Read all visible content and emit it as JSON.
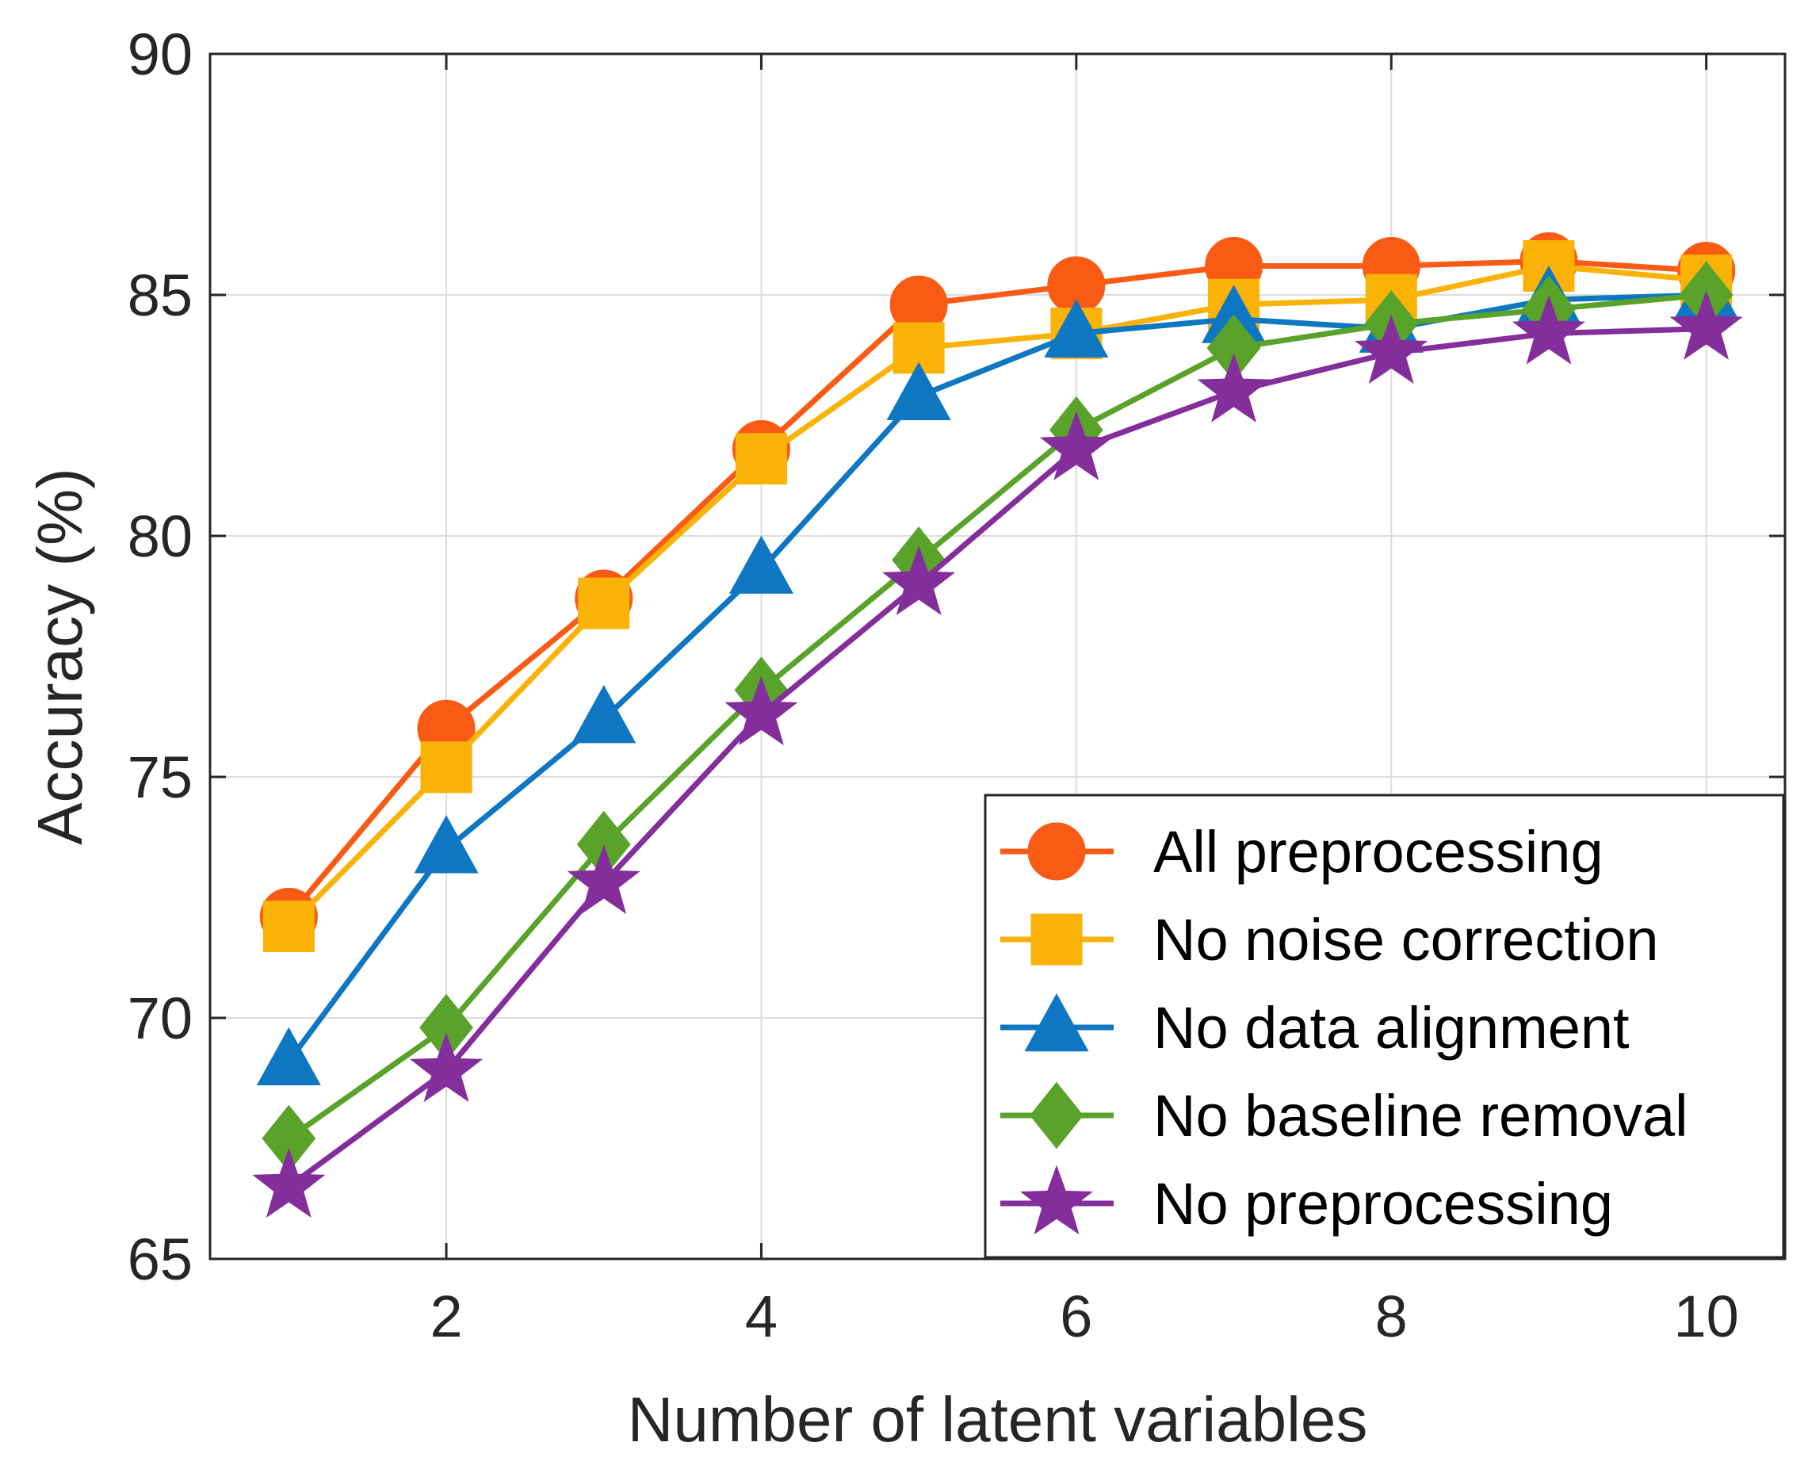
{
  "chart_data": {
    "type": "line",
    "title": "",
    "xlabel": "Number of latent variables",
    "ylabel": "Accuracy (%)",
    "xlim": [
      0.5,
      10.5
    ],
    "ylim": [
      65,
      90
    ],
    "xticks": [
      2,
      4,
      6,
      8,
      10
    ],
    "yticks": [
      65,
      70,
      75,
      80,
      85,
      90
    ],
    "xtick_labels": [
      "2",
      "4",
      "6",
      "8",
      "10"
    ],
    "ytick_labels": [
      "65",
      "70",
      "75",
      "80",
      "85",
      "90"
    ],
    "grid": true,
    "legend_position": "bottom-right",
    "x": [
      1,
      2,
      3,
      4,
      5,
      6,
      7,
      8,
      9,
      10
    ],
    "series": [
      {
        "name": "All preprocessing",
        "color": "#F95B14",
        "marker": "circle",
        "values": [
          72.1,
          76.0,
          78.7,
          81.8,
          84.8,
          85.2,
          85.6,
          85.6,
          85.7,
          85.5
        ]
      },
      {
        "name": "No noise correction",
        "color": "#FBB207",
        "marker": "square",
        "values": [
          71.9,
          75.2,
          78.6,
          81.6,
          83.9,
          84.2,
          84.8,
          84.9,
          85.6,
          85.3
        ]
      },
      {
        "name": "No data alignment",
        "color": "#0F77C2",
        "marker": "triangle",
        "values": [
          69.1,
          73.5,
          76.2,
          79.3,
          82.9,
          84.2,
          84.5,
          84.3,
          84.9,
          85.0
        ]
      },
      {
        "name": "No baseline removal",
        "color": "#5AA32A",
        "marker": "diamond",
        "values": [
          67.5,
          69.8,
          73.6,
          76.8,
          79.5,
          82.2,
          83.9,
          84.4,
          84.7,
          85.0
        ]
      },
      {
        "name": "No preprocessing",
        "color": "#832E9A",
        "marker": "star",
        "values": [
          66.5,
          68.9,
          72.8,
          76.3,
          79.0,
          81.8,
          83.0,
          83.8,
          84.2,
          84.3
        ]
      }
    ]
  }
}
